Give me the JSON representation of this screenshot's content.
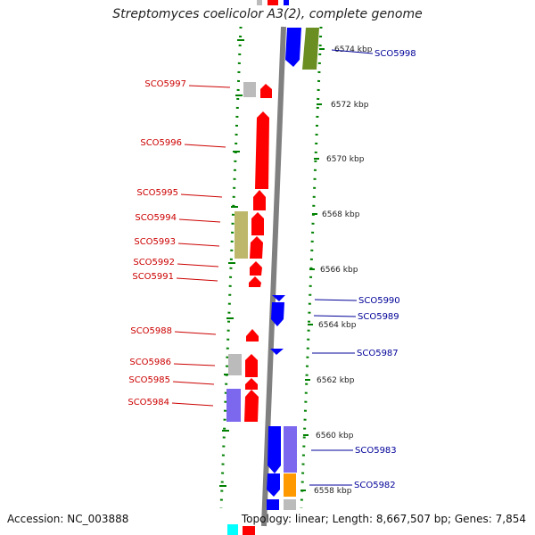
{
  "title": "Streptomyces coelicolor A3(2), complete genome",
  "accession": "Accession: NC_003888",
  "summary": "Topology: linear; Length: 8,667,507 bp; Genes: 7,854",
  "colors": {
    "forward": "#ff0000",
    "reverse": "#0000ff",
    "grey": "#bbbbbb",
    "khaki": "#bdb76b",
    "purple": "#7b68ee",
    "olive": "#6b8e23",
    "orange": "#ff9900",
    "cyan": "#00ffff",
    "axis": "#808080",
    "ruler": "#008000"
  },
  "kbp_marks": [
    "6574 kbp",
    "6572 kbp",
    "6570 kbp",
    "6568 kbp",
    "6566 kbp",
    "6564 kbp",
    "6562 kbp",
    "6560 kbp",
    "6558 kbp"
  ],
  "left_labels": [
    "SCO5997",
    "SCO5996",
    "SCO5995",
    "SCO5994",
    "SCO5993",
    "SCO5992",
    "SCO5991",
    "SCO5988",
    "SCO5986",
    "SCO5985",
    "SCO5984"
  ],
  "right_labels": [
    "SCO5998",
    "SCO5990",
    "SCO5989",
    "SCO5987",
    "SCO5983",
    "SCO5982"
  ]
}
